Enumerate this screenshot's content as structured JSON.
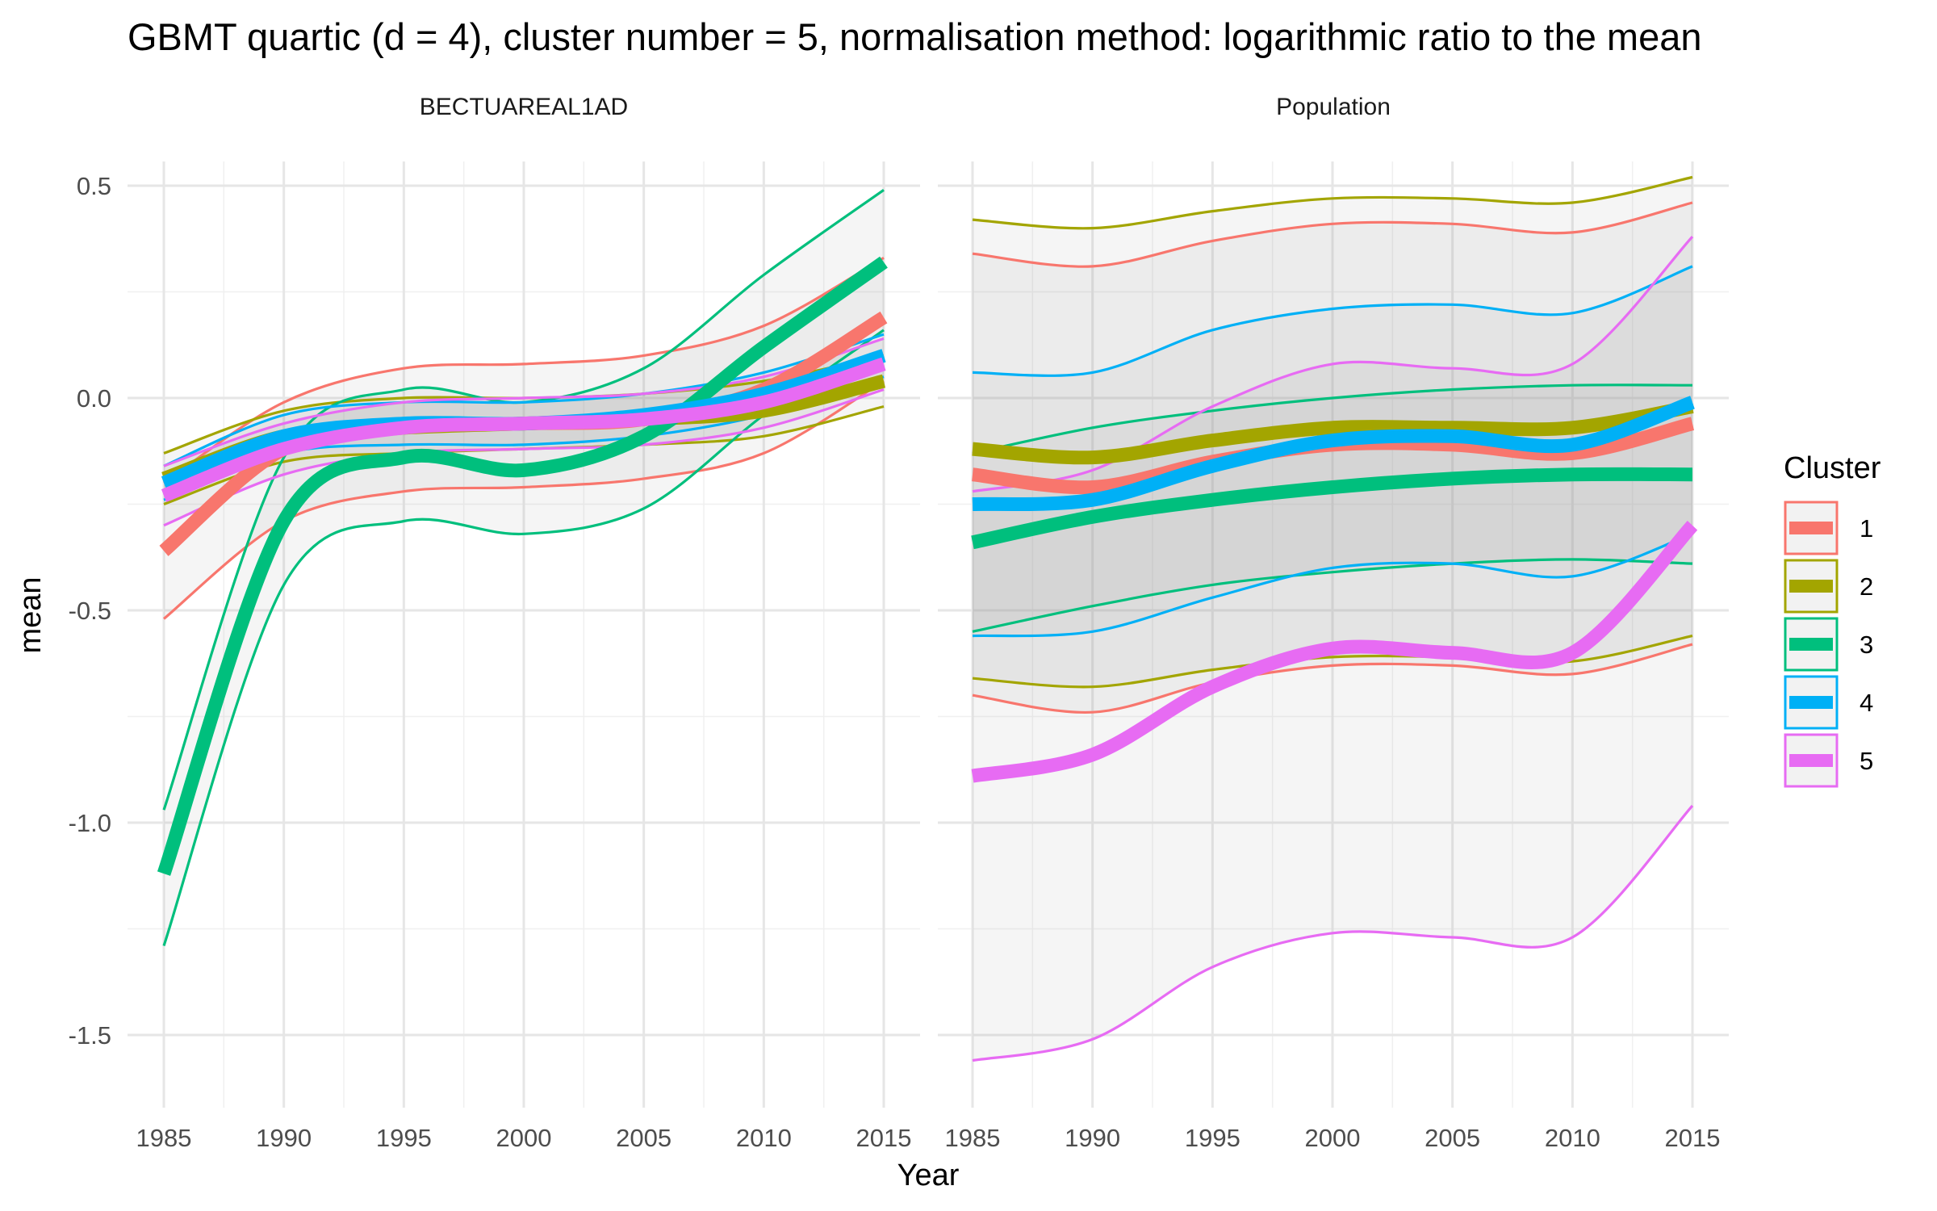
{
  "chart_data": {
    "type": "line",
    "title": "GBMT quartic (d = 4), cluster number = 5, normalisation method: logarithmic ratio to the mean",
    "xlabel": "Year",
    "ylabel": "mean",
    "xlim": [
      1985,
      2015
    ],
    "x_ticks": [
      1985,
      1990,
      1995,
      2000,
      2005,
      2010,
      2015
    ],
    "x_tick_labels": [
      "1985",
      "1990",
      "1995",
      "2000",
      "2005",
      "2010",
      "2015"
    ],
    "ylim": [
      -1.65,
      0.55
    ],
    "y_ticks": [
      0.5,
      0.0,
      -0.5,
      -1.0,
      -1.5
    ],
    "y_tick_labels": [
      "0.5",
      "0.0",
      "-0.5",
      "-1.0",
      "-1.5"
    ],
    "grid": true,
    "legend": {
      "title": "Cluster",
      "placement": "right",
      "entries": [
        {
          "label": "1",
          "color": "#F8766D"
        },
        {
          "label": "2",
          "color": "#A3A500"
        },
        {
          "label": "3",
          "color": "#00BF7D"
        },
        {
          "label": "4",
          "color": "#00B0F6"
        },
        {
          "label": "5",
          "color": "#E76BF3"
        }
      ]
    },
    "x": [
      1985,
      1990,
      1995,
      2000,
      2005,
      2010,
      2015
    ],
    "panels": [
      {
        "name": "BECTUAREAL1AD",
        "series": [
          {
            "cluster": "1",
            "mean": [
              -0.36,
              -0.12,
              -0.07,
              -0.06,
              -0.05,
              0.02,
              0.19
            ],
            "lower": [
              -0.52,
              -0.29,
              -0.22,
              -0.21,
              -0.19,
              -0.13,
              0.04
            ],
            "upper": [
              -0.2,
              -0.01,
              0.07,
              0.08,
              0.1,
              0.17,
              0.33
            ]
          },
          {
            "cluster": "2",
            "mean": [
              -0.19,
              -0.09,
              -0.07,
              -0.06,
              -0.05,
              -0.03,
              0.04
            ],
            "lower": [
              -0.25,
              -0.15,
              -0.13,
              -0.12,
              -0.11,
              -0.09,
              -0.02
            ],
            "upper": [
              -0.13,
              -0.03,
              0.0,
              0.0,
              0.01,
              0.04,
              0.1
            ]
          },
          {
            "cluster": "3",
            "mean": [
              -1.12,
              -0.29,
              -0.14,
              -0.17,
              -0.09,
              0.12,
              0.32
            ],
            "lower": [
              -1.29,
              -0.44,
              -0.29,
              -0.32,
              -0.26,
              -0.04,
              0.16
            ],
            "upper": [
              -0.97,
              -0.14,
              0.02,
              -0.01,
              0.07,
              0.29,
              0.49
            ]
          },
          {
            "cluster": "4",
            "mean": [
              -0.2,
              -0.09,
              -0.06,
              -0.06,
              -0.04,
              0.01,
              0.1
            ],
            "lower": [
              -0.24,
              -0.13,
              -0.11,
              -0.11,
              -0.09,
              -0.04,
              0.05
            ],
            "upper": [
              -0.16,
              -0.04,
              -0.01,
              -0.01,
              0.01,
              0.06,
              0.15
            ]
          },
          {
            "cluster": "5",
            "mean": [
              -0.23,
              -0.12,
              -0.07,
              -0.06,
              -0.05,
              -0.01,
              0.08
            ],
            "lower": [
              -0.3,
              -0.18,
              -0.13,
              -0.12,
              -0.11,
              -0.07,
              0.02
            ],
            "upper": [
              -0.16,
              -0.06,
              -0.01,
              0.0,
              0.01,
              0.05,
              0.14
            ]
          }
        ]
      },
      {
        "name": "Population",
        "series": [
          {
            "cluster": "1",
            "mean": [
              -0.18,
              -0.21,
              -0.15,
              -0.11,
              -0.11,
              -0.13,
              -0.06
            ],
            "lower": [
              -0.7,
              -0.74,
              -0.67,
              -0.63,
              -0.63,
              -0.65,
              -0.58
            ],
            "upper": [
              0.34,
              0.31,
              0.37,
              0.41,
              0.41,
              0.39,
              0.46
            ]
          },
          {
            "cluster": "2",
            "mean": [
              -0.12,
              -0.14,
              -0.1,
              -0.07,
              -0.07,
              -0.07,
              -0.02
            ],
            "lower": [
              -0.66,
              -0.68,
              -0.64,
              -0.61,
              -0.61,
              -0.62,
              -0.56
            ],
            "upper": [
              0.42,
              0.4,
              0.44,
              0.47,
              0.47,
              0.46,
              0.52
            ]
          },
          {
            "cluster": "3",
            "mean": [
              -0.34,
              -0.28,
              -0.24,
              -0.21,
              -0.19,
              -0.18,
              -0.18
            ],
            "lower": [
              -0.55,
              -0.49,
              -0.44,
              -0.41,
              -0.39,
              -0.38,
              -0.39
            ],
            "upper": [
              -0.13,
              -0.07,
              -0.03,
              0.0,
              0.02,
              0.03,
              0.03
            ]
          },
          {
            "cluster": "4",
            "mean": [
              -0.25,
              -0.24,
              -0.16,
              -0.1,
              -0.09,
              -0.11,
              -0.01
            ],
            "lower": [
              -0.56,
              -0.55,
              -0.47,
              -0.4,
              -0.39,
              -0.42,
              -0.32
            ],
            "upper": [
              0.06,
              0.06,
              0.16,
              0.21,
              0.22,
              0.2,
              0.31
            ]
          },
          {
            "cluster": "5",
            "mean": [
              -0.89,
              -0.84,
              -0.68,
              -0.59,
              -0.6,
              -0.6,
              -0.3
            ],
            "lower": [
              -1.56,
              -1.51,
              -1.34,
              -1.26,
              -1.27,
              -1.27,
              -0.96
            ],
            "upper": [
              -0.22,
              -0.17,
              -0.02,
              0.08,
              0.07,
              0.08,
              0.38
            ]
          }
        ]
      }
    ]
  }
}
